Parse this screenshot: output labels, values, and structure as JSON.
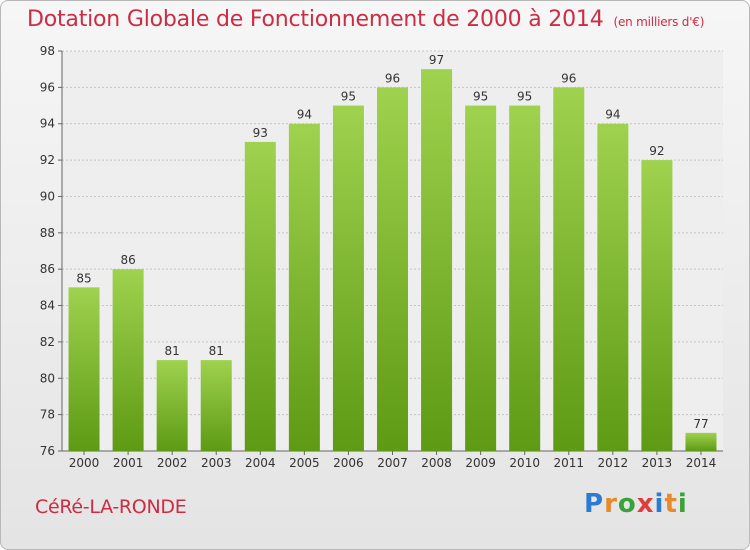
{
  "header": {
    "title": "Dotation Globale de Fonctionnement de 2000 à 2014",
    "unit": "(en milliers d'€)"
  },
  "footer": {
    "commune": "CéRé-LA-RONDE",
    "logo": "Proxiti"
  },
  "colors": {
    "accent": "#cc2c44",
    "bar_top": "#9fd24e",
    "bar_bottom": "#5e9a14"
  },
  "chart_data": {
    "type": "bar",
    "title": "Dotation Globale de Fonctionnement de 2000 à 2014",
    "subtitle": "(en milliers d'€)",
    "xlabel": "",
    "ylabel": "",
    "categories": [
      "2000",
      "2001",
      "2002",
      "2003",
      "2004",
      "2005",
      "2006",
      "2007",
      "2008",
      "2009",
      "2010",
      "2011",
      "2012",
      "2013",
      "2014"
    ],
    "values": [
      85,
      86,
      81,
      81,
      93,
      94,
      95,
      96,
      97,
      95,
      95,
      96,
      94,
      92,
      77
    ],
    "ylim": [
      76,
      98
    ],
    "yticks": [
      76,
      78,
      80,
      82,
      84,
      86,
      88,
      90,
      92,
      94,
      96,
      98
    ],
    "grid": true,
    "data_labels": true
  }
}
